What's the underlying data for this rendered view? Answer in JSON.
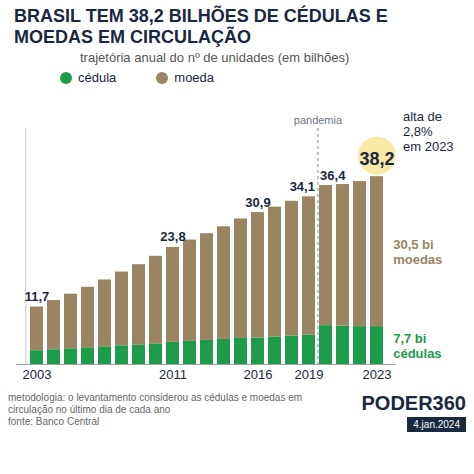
{
  "chart_data": {
    "type": "bar",
    "title": "BRASIL TEM 38,2 BILHÕES DE CÉDULAS E MOEDAS EM CIRCULAÇÃO",
    "subtitle": "trajetória anual do nº de unidades (em bilhões)",
    "categories": [
      "2003",
      null,
      null,
      null,
      null,
      null,
      null,
      null,
      "2011",
      null,
      null,
      null,
      null,
      "2016",
      null,
      null,
      "2019",
      null,
      null,
      null,
      "2023"
    ],
    "series": [
      {
        "name": "cédula",
        "color": "#1e9a4b",
        "values": [
          2.8,
          3.0,
          3.2,
          3.4,
          3.6,
          3.8,
          4.0,
          4.2,
          4.5,
          4.7,
          4.9,
          5.1,
          5.3,
          5.4,
          5.6,
          5.8,
          6.0,
          7.9,
          7.8,
          7.7,
          7.7
        ],
        "end_label": [
          "7,7 bi",
          "cédulas"
        ]
      },
      {
        "name": "moeda",
        "color": "#9b8462",
        "values": [
          8.9,
          10.0,
          11.1,
          12.3,
          13.6,
          15.0,
          16.3,
          17.8,
          19.3,
          20.6,
          21.7,
          22.9,
          24.3,
          25.5,
          26.4,
          27.4,
          28.1,
          28.5,
          28.8,
          29.5,
          30.5
        ],
        "end_label": [
          "30,5 bi",
          "moedas"
        ]
      }
    ],
    "total_labels": [
      "11,7",
      null,
      null,
      null,
      null,
      null,
      null,
      null,
      "23,8",
      null,
      null,
      null,
      null,
      "30,9",
      null,
      null,
      "34,1",
      "36,4",
      null,
      null,
      "38,2"
    ],
    "annotations": [
      {
        "text": "pandemia",
        "after": "2019"
      },
      {
        "text": [
          "alta de",
          "2,8%",
          "em 2023"
        ],
        "at": "2023"
      }
    ],
    "stacked": true,
    "legend": "top-left",
    "tick_labels": "x",
    "grid": false,
    "ylim": [
      0,
      48
    ],
    "yticks": [],
    "caption": "metodologia: o levantamento considerou as cédulas e moedas em circulação no último dia de cada ano",
    "source": "fonte: Banco Central",
    "brand": "PODER360",
    "date": "4.jan.2024"
  }
}
